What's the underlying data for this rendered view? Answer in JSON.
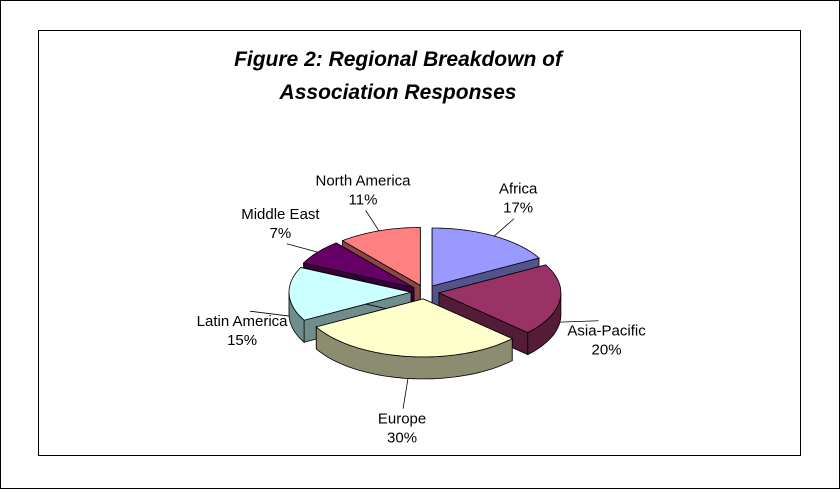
{
  "chart_data": {
    "type": "pie3d",
    "title": [
      "Figure 2: Regional Breakdown of",
      "Association Responses"
    ],
    "categories": [
      "Africa",
      "Asia-Pacific",
      "Europe",
      "Latin America",
      "Middle East",
      "North America"
    ],
    "values": [
      17,
      20,
      30,
      15,
      7,
      11
    ],
    "value_labels": [
      "17%",
      "20%",
      "30%",
      "15%",
      "7%",
      "11%"
    ],
    "colors": [
      "#9999ff",
      "#993366",
      "#ffffcc",
      "#ccffff",
      "#660066",
      "#ff8080"
    ]
  }
}
